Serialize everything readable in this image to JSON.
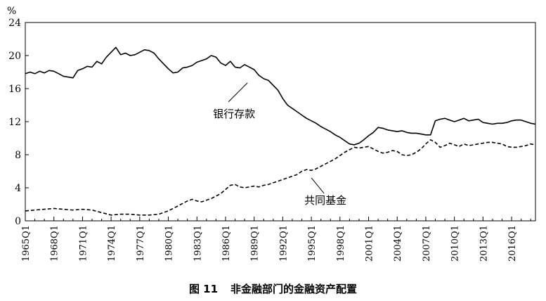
{
  "caption": {
    "number": "图 11",
    "title": "非金融部门的金融资产配置"
  },
  "chart_data": {
    "type": "line",
    "title": "",
    "ylabel": "%",
    "xlabel": "",
    "ylim": [
      0,
      24
    ],
    "yticks": [
      0,
      4,
      8,
      12,
      16,
      20,
      24
    ],
    "xlim": [
      1965.0,
      2018.5
    ],
    "xtick_labels": [
      "1965Q1",
      "1968Q1",
      "1971Q1",
      "1974Q1",
      "1977Q1",
      "1980Q1",
      "1983Q1",
      "1986Q1",
      "1989Q1",
      "1992Q1",
      "1995Q1",
      "1998Q1",
      "2001Q1",
      "2004Q1",
      "2007Q1",
      "2010Q1",
      "2013Q1",
      "2016Q1"
    ],
    "grid": false,
    "legend": "none",
    "series": [
      {
        "name": "银行存款",
        "style": "solid",
        "x": [
          1965.0,
          1965.5,
          1966.0,
          1966.5,
          1967.0,
          1967.5,
          1968.0,
          1968.5,
          1969.0,
          1969.5,
          1970.0,
          1970.5,
          1971.0,
          1971.5,
          1972.0,
          1972.5,
          1973.0,
          1973.5,
          1974.0,
          1974.5,
          1975.0,
          1975.5,
          1976.0,
          1976.5,
          1977.0,
          1977.5,
          1978.0,
          1978.5,
          1979.0,
          1979.5,
          1980.0,
          1980.5,
          1981.0,
          1981.5,
          1982.0,
          1982.5,
          1983.0,
          1983.5,
          1984.0,
          1984.5,
          1985.0,
          1985.5,
          1986.0,
          1986.5,
          1987.0,
          1987.5,
          1988.0,
          1988.5,
          1989.0,
          1989.5,
          1990.0,
          1990.5,
          1991.0,
          1991.5,
          1992.0,
          1992.5,
          1993.0,
          1993.5,
          1994.0,
          1994.5,
          1995.0,
          1995.5,
          1996.0,
          1996.5,
          1997.0,
          1997.5,
          1998.0,
          1998.5,
          1999.0,
          1999.5,
          2000.0,
          2000.5,
          2001.0,
          2001.5,
          2002.0,
          2002.5,
          2003.0,
          2003.5,
          2004.0,
          2004.5,
          2005.0,
          2005.5,
          2006.0,
          2006.5,
          2007.0,
          2007.5,
          2008.0,
          2008.5,
          2009.0,
          2009.5,
          2010.0,
          2010.5,
          2011.0,
          2011.5,
          2012.0,
          2012.5,
          2013.0,
          2013.5,
          2014.0,
          2014.5,
          2015.0,
          2015.5,
          2016.0,
          2016.5,
          2017.0,
          2017.5,
          2018.0,
          2018.5
        ],
        "values": [
          17.8,
          18.0,
          17.8,
          18.1,
          17.9,
          18.2,
          18.1,
          17.8,
          17.5,
          17.4,
          17.3,
          18.2,
          18.4,
          18.7,
          18.6,
          19.3,
          19.0,
          19.8,
          20.4,
          21.0,
          20.1,
          20.3,
          20.0,
          20.1,
          20.4,
          20.7,
          20.6,
          20.3,
          19.6,
          19.0,
          18.4,
          17.9,
          18.0,
          18.5,
          18.6,
          18.8,
          19.2,
          19.4,
          19.6,
          20.0,
          19.8,
          19.1,
          18.8,
          19.3,
          18.6,
          18.5,
          18.9,
          18.6,
          18.3,
          17.6,
          17.2,
          17.0,
          16.4,
          15.8,
          14.8,
          14.0,
          13.6,
          13.2,
          12.8,
          12.4,
          12.1,
          11.8,
          11.4,
          11.1,
          10.8,
          10.4,
          10.1,
          9.7,
          9.3,
          9.2,
          9.4,
          9.8,
          10.3,
          10.7,
          11.3,
          11.2,
          11.0,
          10.9,
          10.8,
          10.9,
          10.7,
          10.6,
          10.6,
          10.5,
          10.4,
          10.4,
          12.1,
          12.3,
          12.4,
          12.2,
          12.0,
          12.2,
          12.4,
          12.1,
          12.2,
          12.3,
          11.9,
          11.8,
          11.7,
          11.8,
          11.8,
          11.9,
          12.1,
          12.2,
          12.2,
          12.0,
          11.8,
          11.7
        ]
      },
      {
        "name": "共同基金",
        "style": "dashed",
        "x": [
          1965.0,
          1966.0,
          1967.0,
          1968.0,
          1969.0,
          1970.0,
          1971.0,
          1972.0,
          1973.0,
          1974.0,
          1975.0,
          1976.0,
          1977.0,
          1978.0,
          1979.0,
          1980.0,
          1980.5,
          1981.0,
          1981.5,
          1982.0,
          1982.5,
          1983.0,
          1983.5,
          1984.0,
          1984.5,
          1985.0,
          1985.5,
          1986.0,
          1986.5,
          1987.0,
          1987.5,
          1988.0,
          1988.5,
          1989.0,
          1989.5,
          1990.0,
          1990.5,
          1991.0,
          1991.5,
          1992.0,
          1992.5,
          1993.0,
          1993.5,
          1994.0,
          1994.5,
          1995.0,
          1995.5,
          1996.0,
          1996.5,
          1997.0,
          1997.5,
          1998.0,
          1998.5,
          1999.0,
          1999.5,
          2000.0,
          2000.5,
          2001.0,
          2001.5,
          2002.0,
          2002.5,
          2003.0,
          2003.5,
          2004.0,
          2004.5,
          2005.0,
          2005.5,
          2006.0,
          2006.5,
          2007.0,
          2007.5,
          2008.0,
          2008.5,
          2009.0,
          2009.5,
          2010.0,
          2010.5,
          2011.0,
          2011.5,
          2012.0,
          2012.5,
          2013.0,
          2013.5,
          2014.0,
          2014.5,
          2015.0,
          2015.5,
          2016.0,
          2016.5,
          2017.0,
          2017.5,
          2018.0,
          2018.5
        ],
        "values": [
          1.2,
          1.3,
          1.4,
          1.5,
          1.4,
          1.3,
          1.4,
          1.3,
          1.0,
          0.7,
          0.8,
          0.8,
          0.7,
          0.7,
          0.8,
          1.2,
          1.5,
          1.8,
          2.1,
          2.4,
          2.6,
          2.4,
          2.3,
          2.5,
          2.7,
          3.0,
          3.3,
          3.8,
          4.3,
          4.4,
          4.1,
          4.0,
          4.1,
          4.2,
          4.1,
          4.3,
          4.4,
          4.6,
          4.8,
          5.0,
          5.2,
          5.4,
          5.6,
          6.0,
          6.2,
          6.1,
          6.3,
          6.6,
          6.9,
          7.2,
          7.5,
          7.9,
          8.3,
          8.6,
          8.9,
          8.8,
          8.9,
          9.0,
          8.7,
          8.4,
          8.2,
          8.3,
          8.5,
          8.4,
          8.0,
          7.9,
          8.0,
          8.3,
          8.7,
          9.3,
          9.8,
          9.5,
          8.9,
          9.1,
          9.4,
          9.2,
          9.0,
          9.3,
          9.1,
          9.2,
          9.3,
          9.4,
          9.5,
          9.5,
          9.4,
          9.3,
          9.0,
          8.9,
          8.9,
          9.0,
          9.1,
          9.3,
          9.2
        ]
      }
    ],
    "annotations": [
      {
        "text": "银行存款",
        "series": 0,
        "point_x": 1988.3,
        "point_y": 16.7
      },
      {
        "text": "共同基金",
        "series": 1,
        "point_x": 1995.0,
        "point_y": 5.2
      }
    ]
  }
}
